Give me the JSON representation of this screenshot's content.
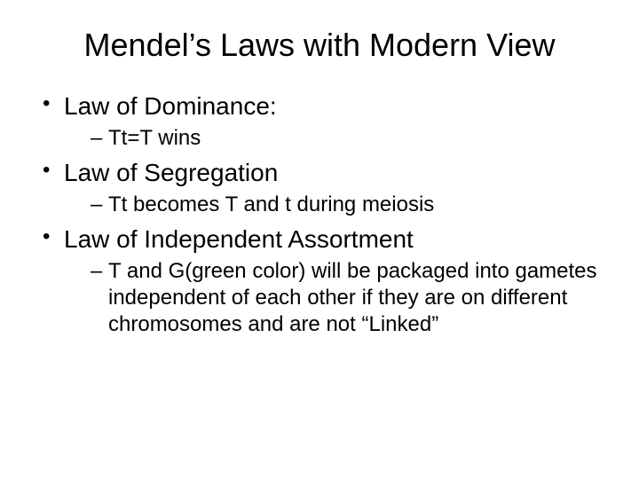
{
  "slide": {
    "title": "Mendel’s Laws with Modern View",
    "bullets": [
      {
        "text": "Law of Dominance:",
        "sub": [
          {
            "text": "Tt=T wins"
          }
        ]
      },
      {
        "text": "Law of Segregation",
        "sub": [
          {
            "text": "Tt becomes T and t during meiosis"
          }
        ]
      },
      {
        "text": "Law of Independent Assortment",
        "sub": [
          {
            "text": "T and G(green color) will be packaged into gametes independent of each other if they are on different chromosomes and are not “Linked”"
          }
        ]
      }
    ],
    "colors": {
      "background": "#ffffff",
      "text": "#000000"
    },
    "fonts": {
      "family": "Arial",
      "title_size_pt": 36,
      "level1_size_pt": 28,
      "level2_size_pt": 24
    }
  }
}
